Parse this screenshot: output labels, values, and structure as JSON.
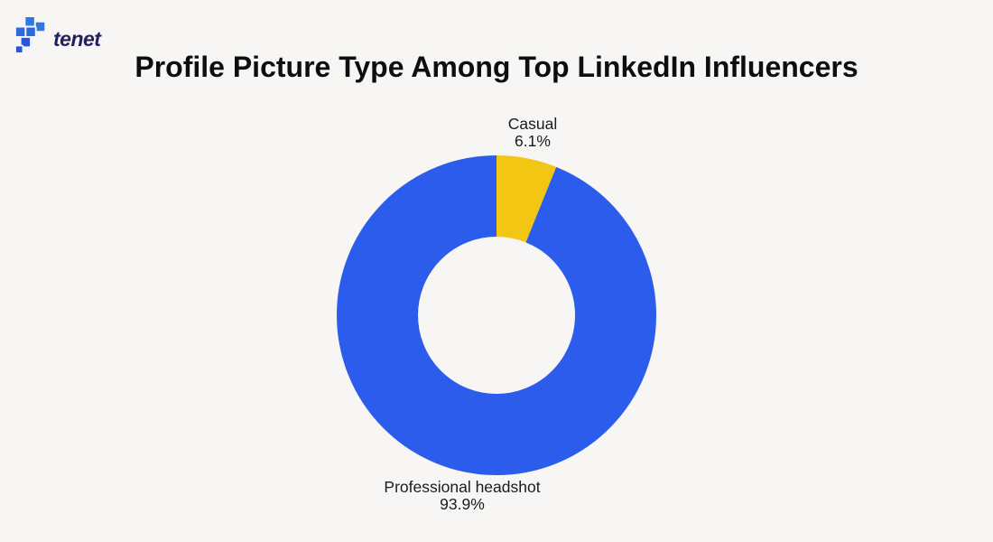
{
  "logo": {
    "brand": "tenet",
    "icon": "tenet-pixel-squares-icon"
  },
  "title": "Profile Picture Type Among Top LinkedIn Influencers",
  "theme": {
    "background": "#F7F6F4",
    "title_color": "#0E0E0E",
    "label_color": "#1B1B1B",
    "logo_text_color": "#232060",
    "logo_icon_color": "#2C68E2",
    "blue": "#2B5CEC",
    "yellow": "#F3C614"
  },
  "chart_data": {
    "type": "pie",
    "variant": "donut",
    "title": "Profile Picture Type Among Top LinkedIn Influencers",
    "start_angle_deg": 0,
    "direction": "clockwise",
    "inner_radius_ratio": 0.49,
    "legend": "none",
    "labels_position": "outside",
    "slices": [
      {
        "label": "Casual",
        "value": 6.1,
        "pct_label": "6.1%",
        "color": "#F3C614"
      },
      {
        "label": "Professional headshot",
        "value": 93.9,
        "pct_label": "93.9%",
        "color": "#2B5CEC"
      }
    ]
  }
}
